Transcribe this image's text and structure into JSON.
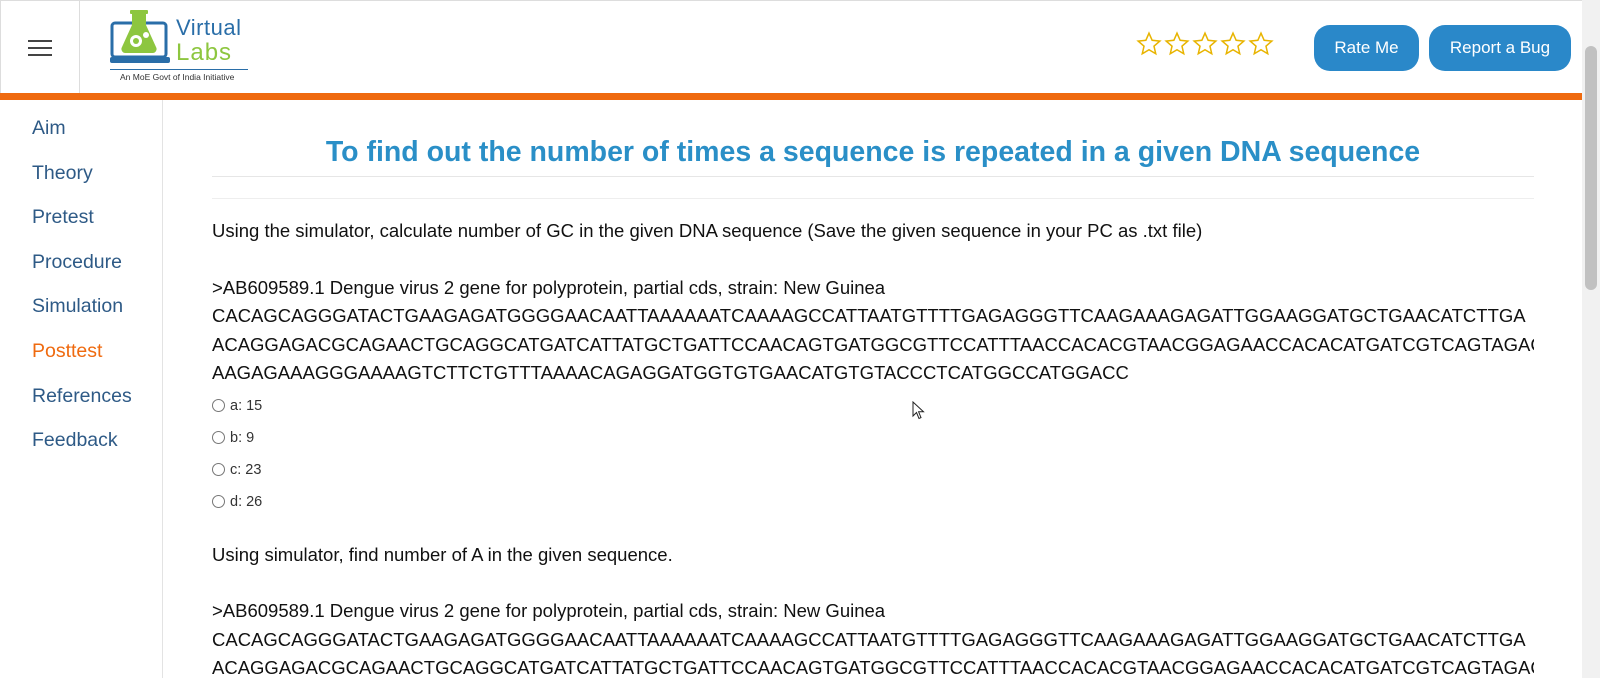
{
  "header": {
    "logo_line1": "Virtual",
    "logo_line2": "Labs",
    "logo_tagline": "An MoE Govt of India Initiative",
    "rate_label": "Rate Me",
    "bug_label": "Report a Bug",
    "rating_stars": 5,
    "rating_value": 0,
    "accent_color": "#ef6a0f",
    "button_color": "#2a88c9"
  },
  "sidebar": {
    "items": [
      {
        "label": "Aim"
      },
      {
        "label": "Theory"
      },
      {
        "label": "Pretest"
      },
      {
        "label": "Procedure"
      },
      {
        "label": "Simulation"
      },
      {
        "label": "Posttest"
      },
      {
        "label": "References"
      },
      {
        "label": "Feedback"
      }
    ],
    "active": "Posttest"
  },
  "main": {
    "title": "To find out the number of times a sequence is repeated in a given DNA sequence",
    "q1": {
      "prompt": "Using the simulator, calculate number of GC in the given DNA sequence (Save the given sequence in your PC as .txt file)",
      "seq_header": ">AB609589.1 Dengue virus 2 gene for polyprotein, partial cds, strain: New Guinea",
      "seq_lines": [
        "CACAGCAGGGATACTGAAGAGATGGGGAACAATTAAAAAATCAAAAGCCATTAATGTTTTGAGAGGGTTCAAGAAAGAGATTGGAAGGATGCTGAACATCTTGA",
        "ACAGGAGACGCAGAACTGCAGGCATGATCATTATGCTGATTCCAACAGTGATGGCGTTCCATTTAACCACACGTAACGGAGAACCACACATGATCGTCAGTAGAC",
        "AAGAGAAAGGGAAAAGTCTTCTGTTTAAAACAGAGGATGGTGTGAACATGTGTACCCTCATGGCCATGGACC"
      ],
      "options": [
        "a: 15",
        "b: 9",
        "c: 23",
        "d: 26"
      ]
    },
    "q2": {
      "prompt": "Using simulator, find number of A in the given sequence.",
      "seq_header": ">AB609589.1 Dengue virus 2 gene for polyprotein, partial cds, strain: New Guinea",
      "seq_lines": [
        "CACAGCAGGGATACTGAAGAGATGGGGAACAATTAAAAAATCAAAAGCCATTAATGTTTTGAGAGGGTTCAAGAAAGAGATTGGAAGGATGCTGAACATCTTGA",
        "ACAGGAGACGCAGAACTGCAGGCATGATCATTATGCTGATTCCAACAGTGATGGCGTTCCATTTAACCACACGTAACGGAGAACCACACATGATCGTCAGTAGAC"
      ]
    }
  }
}
